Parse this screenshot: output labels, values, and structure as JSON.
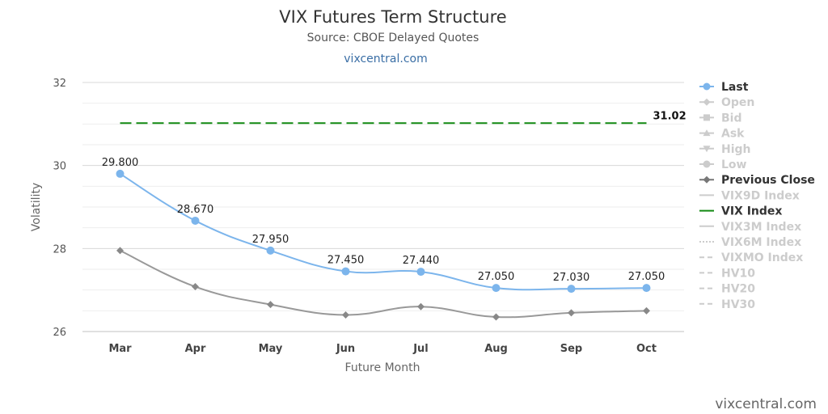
{
  "chart_data": {
    "type": "line",
    "title": "VIX Futures Term Structure",
    "subtitle": "Source: CBOE Delayed Quotes",
    "link_text": "vixcentral.com",
    "credit": "vixcentral.com",
    "xlabel": "Future Month",
    "ylabel": "Volatility",
    "categories": [
      "Mar",
      "Apr",
      "May",
      "Jun",
      "Jul",
      "Aug",
      "Sep",
      "Oct"
    ],
    "ylim": [
      26,
      32
    ],
    "yticks": [
      "26",
      "28",
      "30",
      "32"
    ],
    "grid": true,
    "legend_position": "right",
    "series": [
      {
        "name": "Last",
        "color": "#7cb5ec",
        "marker": "circle",
        "values": [
          29.8,
          28.67,
          27.95,
          27.45,
          27.44,
          27.05,
          27.03,
          27.05
        ],
        "labels": [
          "29.800",
          "28.670",
          "27.950",
          "27.450",
          "27.440",
          "27.050",
          "27.030",
          "27.050"
        ]
      },
      {
        "name": "Previous Close",
        "color": "#999999",
        "marker": "diamond",
        "values": [
          27.95,
          27.08,
          26.65,
          26.4,
          26.6,
          26.35,
          26.45,
          26.5
        ]
      },
      {
        "name": "VIX Index",
        "color": "#138a13",
        "dashed": true,
        "value": 31.02,
        "label": "31.02"
      }
    ],
    "legend": [
      {
        "label": "Last",
        "active": true,
        "symbol": "circle",
        "color": "#7cb5ec"
      },
      {
        "label": "Open",
        "active": false,
        "symbol": "diamond"
      },
      {
        "label": "Bid",
        "active": false,
        "symbol": "square"
      },
      {
        "label": "Ask",
        "active": false,
        "symbol": "triangle-up"
      },
      {
        "label": "High",
        "active": false,
        "symbol": "triangle-down"
      },
      {
        "label": "Low",
        "active": false,
        "symbol": "circle"
      },
      {
        "label": "Previous Close",
        "active": true,
        "symbol": "diamond",
        "color": "#777777"
      },
      {
        "label": "VIX9D Index",
        "active": false,
        "symbol": "line"
      },
      {
        "label": "VIX Index",
        "active": true,
        "symbol": "line",
        "color": "#138a13"
      },
      {
        "label": "VIX3M Index",
        "active": false,
        "symbol": "line"
      },
      {
        "label": "VIX6M Index",
        "active": false,
        "symbol": "dotted"
      },
      {
        "label": "VIXMO Index",
        "active": false,
        "symbol": "dashdot"
      },
      {
        "label": "HV10",
        "active": false,
        "symbol": "dashdot"
      },
      {
        "label": "HV20",
        "active": false,
        "symbol": "dashdot"
      },
      {
        "label": "HV30",
        "active": false,
        "symbol": "dashdot"
      }
    ]
  }
}
